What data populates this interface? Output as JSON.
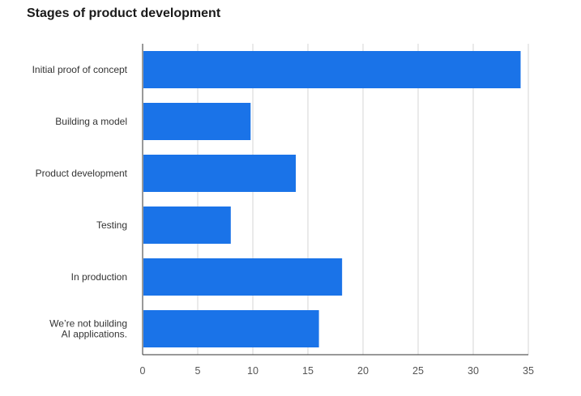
{
  "chart_data": {
    "type": "bar",
    "orientation": "horizontal",
    "title": "Stages of product development",
    "categories": [
      "Initial proof of concept",
      "Building a model",
      "Product development",
      "Testing",
      "In production",
      "We’re not building\nAI applications."
    ],
    "values": [
      34.3,
      9.8,
      13.9,
      8.0,
      18.1,
      16.0
    ],
    "xlabel": "",
    "ylabel": "",
    "xlim": [
      0,
      35
    ],
    "xticks": [
      0,
      5,
      10,
      15,
      20,
      25,
      30,
      35
    ],
    "grid": "vertical",
    "legend": "none",
    "bar_color": "#1a73e8"
  }
}
